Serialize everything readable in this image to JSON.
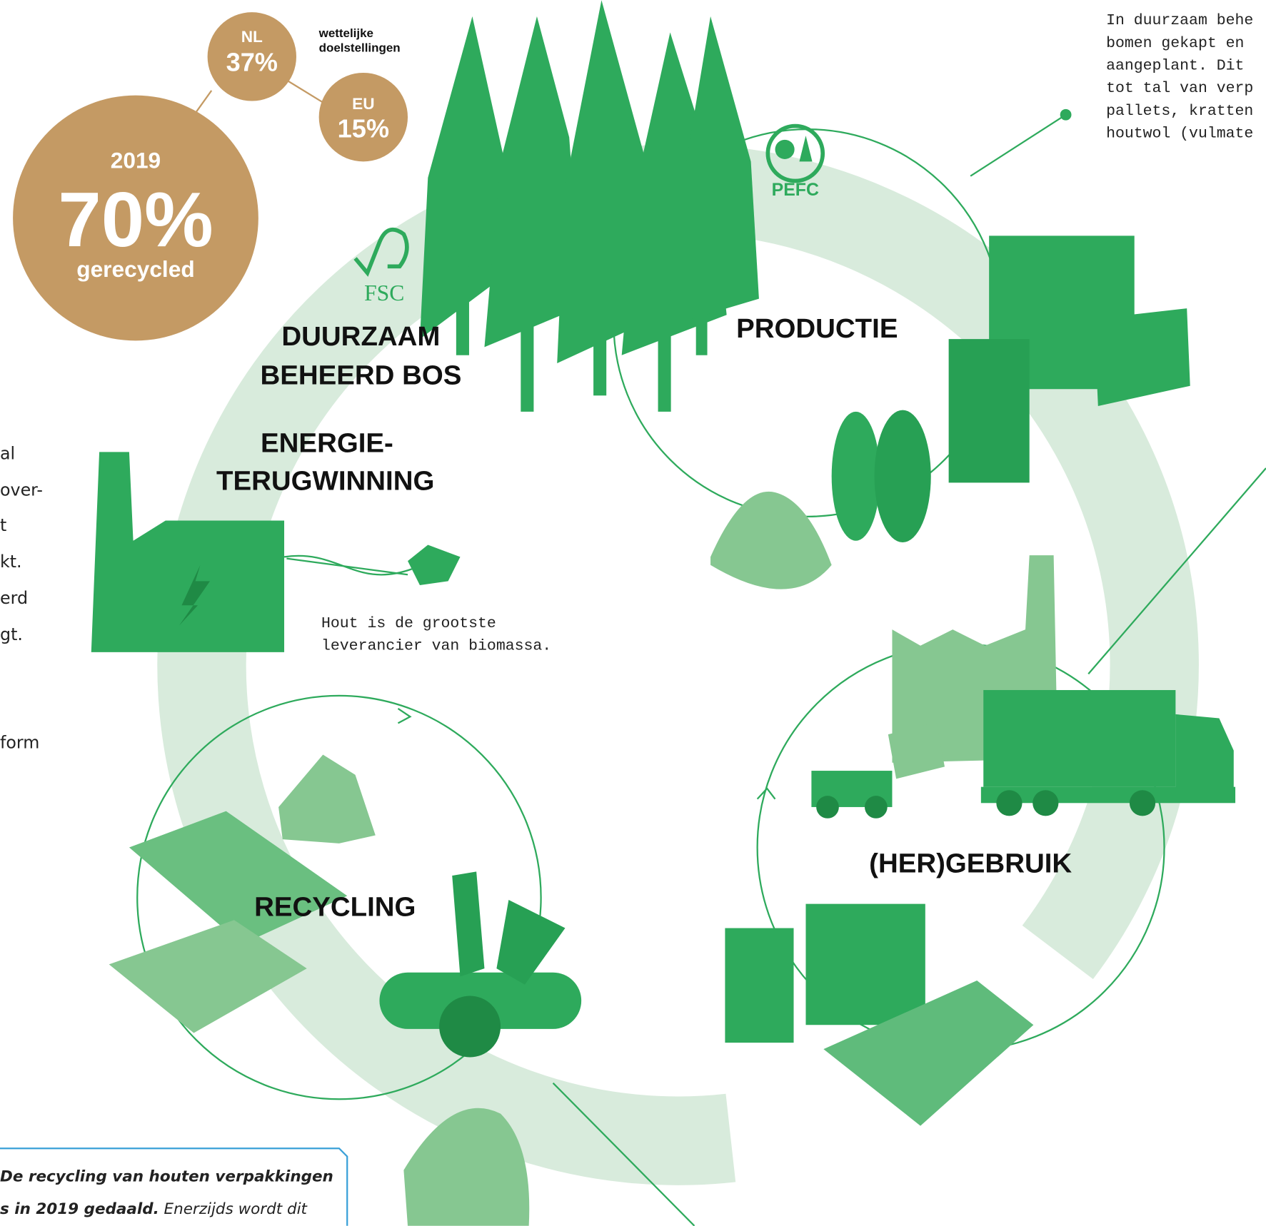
{
  "targets": {
    "title": [
      "wettelijke",
      "doelstellingen"
    ],
    "nl": {
      "label": "NL",
      "value": "37%"
    },
    "eu": {
      "label": "EU",
      "value": "15%"
    }
  },
  "recycled": {
    "year": "2019",
    "value": "70%",
    "label": "gerecycled"
  },
  "logos": {
    "fsc": "FSC",
    "pefc": "PEFC"
  },
  "stages": {
    "forest": [
      "DUURZAAM",
      "BEHEERD BOS"
    ],
    "production": "PRODUCTIE",
    "energy": [
      "ENERGIE-",
      "TERUGWINNING"
    ],
    "reuse": "(HER)GEBRUIK",
    "recycling": "RECYCLING"
  },
  "notes": {
    "biomass": [
      "Hout is de grootste",
      "leverancier van biomassa."
    ],
    "forest": [
      "In duurzaam behe",
      "bomen gekapt en",
      "aangeplant. Dit",
      "tot tal van verp",
      "pallets, kratten",
      "houtwol (vulmate"
    ],
    "left": [
      "al",
      "over-",
      "t",
      "kt.",
      "erd",
      "gt.",
      "form"
    ]
  },
  "callout": {
    "bold": [
      "De recycling van houten verpakkingen",
      "s in 2019 gedaald."
    ],
    "text": "Enerzijds wordt dit"
  }
}
